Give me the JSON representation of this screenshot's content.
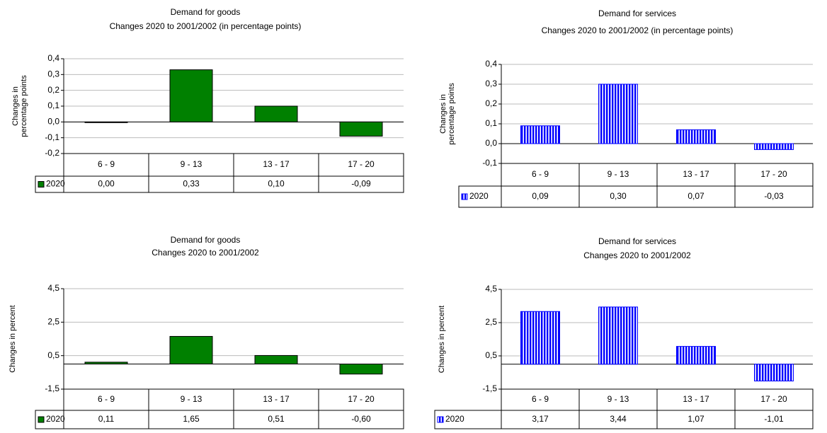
{
  "chart_data": [
    {
      "type": "bar",
      "title": "Demand for goods",
      "subtitle": "Changes 2020 to 2001/2002 (in percentage points)",
      "y_label": "Changes in percentage points",
      "categories": [
        "6 - 9",
        "9 - 13",
        "13 - 17",
        "17 - 20"
      ],
      "series": [
        {
          "name": "2020",
          "color": "#008000",
          "values": [
            0.0,
            0.33,
            0.1,
            -0.09
          ],
          "value_labels": [
            "0,00",
            "0,33",
            "0,10",
            "-0,09"
          ]
        }
      ],
      "ylim": [
        -0.2,
        0.4
      ],
      "yticks": [
        {
          "value": -0.2,
          "label": "-0,2"
        },
        {
          "value": -0.1,
          "label": "-0,1"
        },
        {
          "value": 0.0,
          "label": "0,0"
        },
        {
          "value": 0.1,
          "label": "0,1"
        },
        {
          "value": 0.2,
          "label": "0,2"
        },
        {
          "value": 0.3,
          "label": "0,3"
        },
        {
          "value": 0.4,
          "label": "0,4"
        }
      ],
      "grid": true
    },
    {
      "type": "bar",
      "title": "Demand for services",
      "subtitle": "Changes 2020 to 2001/2002 (in percentage points)",
      "y_label": "Changes in percentage points",
      "categories": [
        "6 - 9",
        "9 - 13",
        "13 - 17",
        "17 - 20"
      ],
      "series": [
        {
          "name": "2020",
          "color": "#0000ff",
          "pattern": "vertical-stripes",
          "values": [
            0.09,
            0.3,
            0.07,
            -0.03
          ],
          "value_labels": [
            "0,09",
            "0,30",
            "0,07",
            "-0,03"
          ]
        }
      ],
      "ylim": [
        -0.1,
        0.4
      ],
      "yticks": [
        {
          "value": -0.1,
          "label": "-0,1"
        },
        {
          "value": 0.0,
          "label": "0,0"
        },
        {
          "value": 0.1,
          "label": "0,1"
        },
        {
          "value": 0.2,
          "label": "0,2"
        },
        {
          "value": 0.3,
          "label": "0,3"
        },
        {
          "value": 0.4,
          "label": "0,4"
        }
      ],
      "grid": true
    },
    {
      "type": "bar",
      "title": "Demand for goods",
      "subtitle": "Changes 2020 to 2001/2002",
      "y_label": "Changes in percent",
      "categories": [
        "6 - 9",
        "9 - 13",
        "13 - 17",
        "17 - 20"
      ],
      "series": [
        {
          "name": "2020",
          "color": "#008000",
          "values": [
            0.11,
            1.65,
            0.51,
            -0.6
          ],
          "value_labels": [
            "0,11",
            "1,65",
            "0,51",
            "-0,60"
          ]
        }
      ],
      "ylim": [
        -1.5,
        4.5
      ],
      "yticks": [
        {
          "value": -1.5,
          "label": "-1,5"
        },
        {
          "value": 0.5,
          "label": "0,5"
        },
        {
          "value": 2.5,
          "label": "2,5"
        },
        {
          "value": 4.5,
          "label": "4,5"
        }
      ],
      "grid": true
    },
    {
      "type": "bar",
      "title": "Demand for services",
      "subtitle": "Changes 2020 to 2001/2002",
      "y_label": "Changes in percent",
      "categories": [
        "6 - 9",
        "9 - 13",
        "13 - 17",
        "17 - 20"
      ],
      "series": [
        {
          "name": "2020",
          "color": "#0000ff",
          "pattern": "vertical-stripes",
          "values": [
            3.17,
            3.44,
            1.07,
            -1.01
          ],
          "value_labels": [
            "3,17",
            "3,44",
            "1,07",
            "-1,01"
          ]
        }
      ],
      "ylim": [
        -1.5,
        4.5
      ],
      "yticks": [
        {
          "value": -1.5,
          "label": "-1,5"
        },
        {
          "value": 0.5,
          "label": "0,5"
        },
        {
          "value": 2.5,
          "label": "2,5"
        },
        {
          "value": 4.5,
          "label": "4,5"
        }
      ],
      "grid": true
    }
  ]
}
